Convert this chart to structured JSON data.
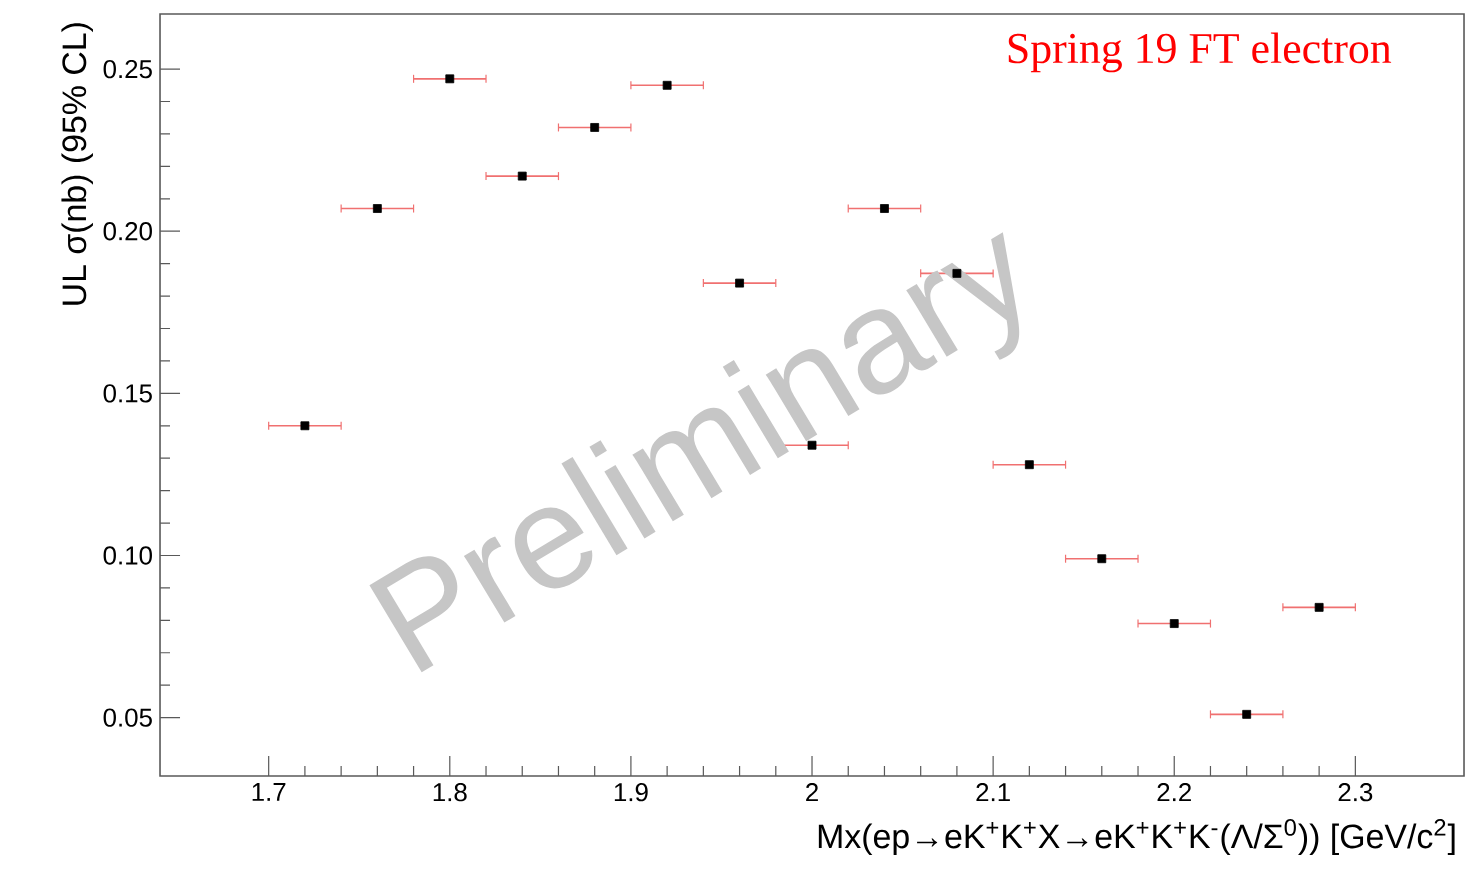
{
  "chart_data": {
    "type": "scatter",
    "xlabel": "Mx(ep→eK$^{+}$K$^{+}$X→eK$^{+}$K$^{+}$K$^{-}$(Λ/Σ$^{0}$)) [GeV/c$^{2}$]",
    "ylabel": "UL σ(nb) (95% CL)",
    "annotations": [
      "Spring 19 FT electron",
      "Preliminary"
    ],
    "x": [
      1.72,
      1.76,
      1.8,
      1.84,
      1.88,
      1.92,
      1.96,
      2.0,
      2.04,
      2.08,
      2.12,
      2.16,
      2.2,
      2.24,
      2.28
    ],
    "series": [
      {
        "color": "#000000",
        "values": [
          0.14,
          0.207,
          0.247,
          0.217,
          0.232,
          0.245,
          0.184,
          0.134,
          0.207,
          0.187,
          0.128,
          0.099,
          0.079,
          0.051,
          0.084
        ],
        "xerrors": [
          0.02,
          0.02,
          0.02,
          0.02,
          0.02,
          0.02,
          0.02,
          0.02,
          0.02,
          0.02,
          0.02,
          0.02,
          0.02,
          0.02,
          0.02
        ]
      }
    ],
    "marker": "square",
    "xlim": [
      1.64,
      2.36
    ],
    "ylim": [
      0.032,
      0.267
    ],
    "xticks": [
      1.7,
      1.8,
      1.9,
      2,
      2.1,
      2.2,
      2.3
    ],
    "yticks": [
      {
        "value": 0.05,
        "label": "0.05"
      },
      {
        "value": 0.1,
        "label": "0.10"
      },
      {
        "value": 0.15,
        "label": "0.15"
      },
      {
        "value": 0.2,
        "label": "0.20"
      },
      {
        "value": 0.25,
        "label": "0.25"
      }
    ]
  }
}
